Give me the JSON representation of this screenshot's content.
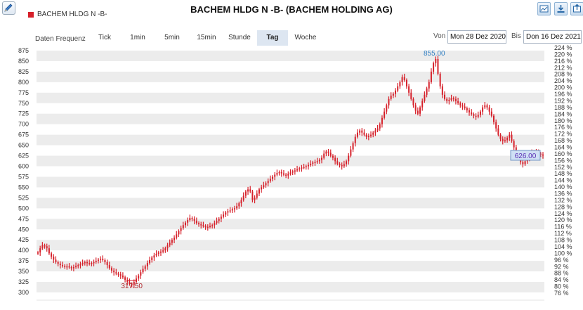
{
  "header": {
    "title": "BACHEM HLDG N -B- (BACHEM HOLDING AG)",
    "legend_label": "BACHEM HLDG N -B-",
    "series_color": "#d6202a"
  },
  "toolbar": {
    "frequency_label": "Daten Frequenz",
    "tabs": [
      "Tick",
      "1min",
      "5min",
      "15min",
      "Stunde",
      "Tag",
      "Woche"
    ],
    "active_tab": "Tag",
    "from_label": "Von",
    "from_value": "Mon 28 Dez 2020",
    "to_label": "Bis",
    "to_value": "Don 16 Dez 2021"
  },
  "tool_icons": [
    "chart-settings-icon",
    "download-icon",
    "export-icon"
  ],
  "chart_data": {
    "type": "candlestick",
    "x_range": [
      "Mon 28 Dez 2020",
      "Don 16 Dez 2021"
    ],
    "ylim": [
      300,
      875
    ],
    "y_ticks": [
      300,
      325,
      350,
      375,
      400,
      425,
      450,
      475,
      500,
      525,
      550,
      575,
      600,
      625,
      650,
      675,
      700,
      725,
      750,
      775,
      800,
      825,
      850,
      875
    ],
    "y2_ticks": [
      "76 %",
      "80 %",
      "84 %",
      "88 %",
      "92 %",
      "96 %",
      "100 %",
      "104 %",
      "108 %",
      "112 %",
      "116 %",
      "120 %",
      "124 %",
      "128 %",
      "132 %",
      "136 %",
      "140 %",
      "144 %",
      "148 %",
      "152 %",
      "156 %",
      "160 %",
      "164 %",
      "168 %",
      "172 %",
      "176 %",
      "180 %",
      "184 %",
      "188 %",
      "192 %",
      "196 %",
      "200 %",
      "204 %",
      "208 %",
      "212 %",
      "216 %",
      "220 %",
      "224 %"
    ],
    "grid": "alternating-bands",
    "annotations": {
      "max_label": "855.00",
      "min_label": "317.50",
      "last_label": "626.00",
      "last_value": 626
    },
    "series": [
      {
        "values": [
          395,
          405,
          412,
          410,
          405,
          393,
          385,
          378,
          372,
          368,
          365,
          363,
          362,
          362,
          360,
          358,
          360,
          363,
          365,
          367,
          370,
          372,
          370,
          368,
          370,
          372,
          375,
          378,
          380,
          377,
          372,
          365,
          358,
          352,
          348,
          345,
          343,
          340,
          336,
          330,
          325,
          320,
          318,
          325,
          333,
          340,
          348,
          356,
          362,
          370,
          377,
          383,
          388,
          392,
          395,
          397,
          400,
          405,
          412,
          418,
          425,
          430,
          438,
          446,
          453,
          460,
          466,
          472,
          477,
          475,
          470,
          465,
          462,
          460,
          458,
          455,
          456,
          458,
          460,
          465,
          470,
          475,
          480,
          485,
          490,
          493,
          495,
          498,
          500,
          505,
          512,
          520,
          530,
          540,
          545,
          540,
          520,
          525,
          535,
          545,
          550,
          555,
          560,
          565,
          570,
          575,
          580,
          584,
          586,
          583,
          580,
          578,
          582,
          585,
          588,
          590,
          593,
          595,
          597,
          598,
          600,
          603,
          606,
          609,
          610,
          612,
          615,
          620,
          630,
          635,
          632,
          625,
          620,
          612,
          606,
          603,
          600,
          605,
          612,
          625,
          640,
          655,
          670,
          680,
          685,
          680,
          675,
          670,
          672,
          675,
          680,
          685,
          690,
          700,
          715,
          730,
          745,
          760,
          768,
          772,
          780,
          790,
          800,
          812,
          805,
          790,
          775,
          760,
          745,
          732,
          725,
          740,
          755,
          770,
          785,
          800,
          825,
          845,
          855,
          820,
          790,
          770,
          760,
          755,
          758,
          762,
          760,
          755,
          750,
          745,
          742,
          738,
          733,
          728,
          724,
          720,
          718,
          722,
          730,
          740,
          745,
          740,
          730,
          720,
          705,
          690,
          675,
          665,
          660,
          662,
          668,
          675,
          660,
          645,
          630,
          620,
          610,
          605,
          612,
          620,
          628,
          632,
          635,
          632,
          630,
          628,
          626
        ]
      }
    ]
  }
}
